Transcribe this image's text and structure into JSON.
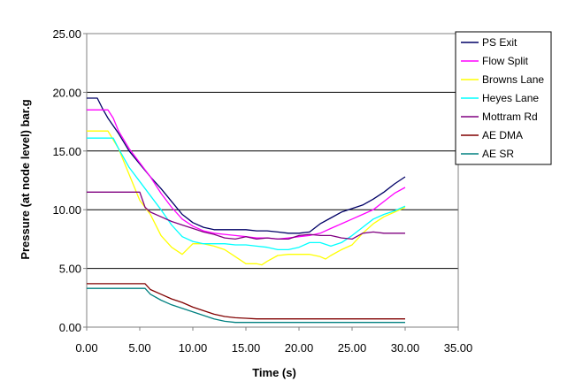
{
  "chart_data": {
    "type": "line",
    "title": "",
    "xlabel": "Time (s)",
    "ylabel": "Pressure (at node level) bar.g",
    "xlim": [
      0,
      35
    ],
    "ylim": [
      0,
      25
    ],
    "x_ticks": [
      0,
      5,
      10,
      15,
      20,
      25,
      30,
      35
    ],
    "y_ticks": [
      0,
      5,
      10,
      15,
      20,
      25
    ],
    "x_tick_labels": [
      "0.00",
      "5.00",
      "10.00",
      "15.00",
      "20.00",
      "25.00",
      "30.00",
      "35.00"
    ],
    "y_tick_labels": [
      "0.00",
      "5.00",
      "10.00",
      "15.00",
      "20.00",
      "25.00"
    ],
    "grid": "horizontal",
    "legend_position": "right",
    "series": [
      {
        "name": "PS Exit",
        "color": "#000066",
        "x": [
          0,
          1,
          1.5,
          2,
          3,
          4,
          5,
          6,
          7,
          8,
          9,
          10,
          11,
          12,
          13,
          14,
          15,
          16,
          17,
          18,
          19,
          20,
          21,
          22,
          23,
          24,
          25,
          26,
          27,
          28,
          29,
          30
        ],
        "y": [
          19.5,
          19.5,
          18.6,
          17.8,
          16.5,
          15.0,
          13.9,
          12.8,
          11.8,
          10.7,
          9.6,
          8.9,
          8.5,
          8.3,
          8.3,
          8.3,
          8.3,
          8.2,
          8.2,
          8.1,
          8.0,
          8.0,
          8.1,
          8.8,
          9.3,
          9.8,
          10.1,
          10.4,
          10.9,
          11.5,
          12.2,
          12.8
        ]
      },
      {
        "name": "Flow Split",
        "color": "#ff00ff",
        "x": [
          0,
          2,
          2.5,
          3,
          4,
          5,
          6,
          7,
          8,
          9,
          10,
          11,
          12,
          13,
          14,
          15,
          16,
          17,
          18,
          19,
          20,
          21,
          22,
          23,
          24,
          25,
          26,
          27,
          28,
          29,
          30
        ],
        "y": [
          18.5,
          18.5,
          17.8,
          16.7,
          15.2,
          14.0,
          12.8,
          11.4,
          10.2,
          9.2,
          8.6,
          8.2,
          8.0,
          7.9,
          7.8,
          7.7,
          7.6,
          7.6,
          7.5,
          7.6,
          7.7,
          7.8,
          8.0,
          8.4,
          8.8,
          9.2,
          9.6,
          10.0,
          10.7,
          11.4,
          11.9
        ]
      },
      {
        "name": "Browns Lane",
        "color": "#ffff00",
        "x": [
          0,
          2,
          3,
          4,
          5,
          6,
          7,
          8,
          9,
          10,
          11,
          12,
          13,
          14,
          15,
          16,
          16.5,
          17,
          18,
          19,
          20,
          21,
          22,
          22.5,
          23,
          24,
          25,
          26,
          27,
          28,
          29,
          30
        ],
        "y": [
          16.7,
          16.7,
          15.2,
          13.0,
          10.8,
          9.6,
          7.8,
          6.8,
          6.2,
          7.1,
          7.1,
          6.9,
          6.6,
          6.0,
          5.4,
          5.4,
          5.3,
          5.6,
          6.1,
          6.2,
          6.2,
          6.2,
          6.0,
          5.8,
          6.1,
          6.6,
          7.0,
          8.0,
          8.8,
          9.4,
          9.8,
          10.2
        ]
      },
      {
        "name": "Heyes Lane",
        "color": "#00ffff",
        "x": [
          0,
          2.5,
          3,
          4,
          5,
          6,
          7,
          8,
          9,
          10,
          11,
          12,
          13,
          14,
          15,
          16,
          17,
          18,
          19,
          20,
          21,
          22,
          23,
          24,
          25,
          26,
          27,
          28,
          29,
          30
        ],
        "y": [
          16.1,
          16.1,
          15.2,
          13.6,
          12.4,
          11.2,
          10.0,
          8.7,
          7.7,
          7.3,
          7.1,
          7.1,
          7.1,
          7.0,
          7.0,
          6.9,
          6.8,
          6.6,
          6.6,
          6.8,
          7.2,
          7.2,
          6.9,
          7.2,
          7.8,
          8.5,
          9.2,
          9.6,
          9.9,
          10.3
        ]
      },
      {
        "name": "Mottram Rd",
        "color": "#800080",
        "x": [
          0,
          5,
          5.5,
          6,
          7,
          8,
          9,
          10,
          11,
          12,
          13,
          14,
          15,
          16,
          17,
          18,
          19,
          20,
          21,
          22,
          23,
          24,
          25,
          26,
          27,
          28,
          29,
          30
        ],
        "y": [
          11.5,
          11.5,
          10.2,
          9.8,
          9.4,
          9.0,
          8.7,
          8.4,
          8.1,
          7.9,
          7.6,
          7.5,
          7.7,
          7.5,
          7.6,
          7.5,
          7.5,
          7.8,
          7.9,
          7.8,
          7.8,
          7.6,
          7.5,
          8.0,
          8.1,
          8.0,
          8.0,
          8.0
        ]
      },
      {
        "name": "AE DMA",
        "color": "#800000",
        "x": [
          0,
          5.5,
          6,
          7,
          8,
          9,
          10,
          11,
          12,
          13,
          14,
          15,
          16,
          18,
          20,
          22,
          24,
          26,
          28,
          30
        ],
        "y": [
          3.7,
          3.7,
          3.2,
          2.8,
          2.4,
          2.1,
          1.7,
          1.4,
          1.1,
          0.9,
          0.8,
          0.75,
          0.7,
          0.7,
          0.7,
          0.7,
          0.7,
          0.7,
          0.7,
          0.7
        ]
      },
      {
        "name": "AE SR",
        "color": "#008080",
        "x": [
          0,
          5.5,
          6,
          7,
          8,
          9,
          10,
          11,
          12,
          13,
          14,
          15,
          16,
          18,
          20,
          22,
          24,
          26,
          28,
          30
        ],
        "y": [
          3.3,
          3.3,
          2.8,
          2.3,
          1.9,
          1.6,
          1.3,
          1.0,
          0.7,
          0.5,
          0.4,
          0.4,
          0.4,
          0.4,
          0.4,
          0.4,
          0.4,
          0.4,
          0.4,
          0.4
        ]
      }
    ]
  }
}
